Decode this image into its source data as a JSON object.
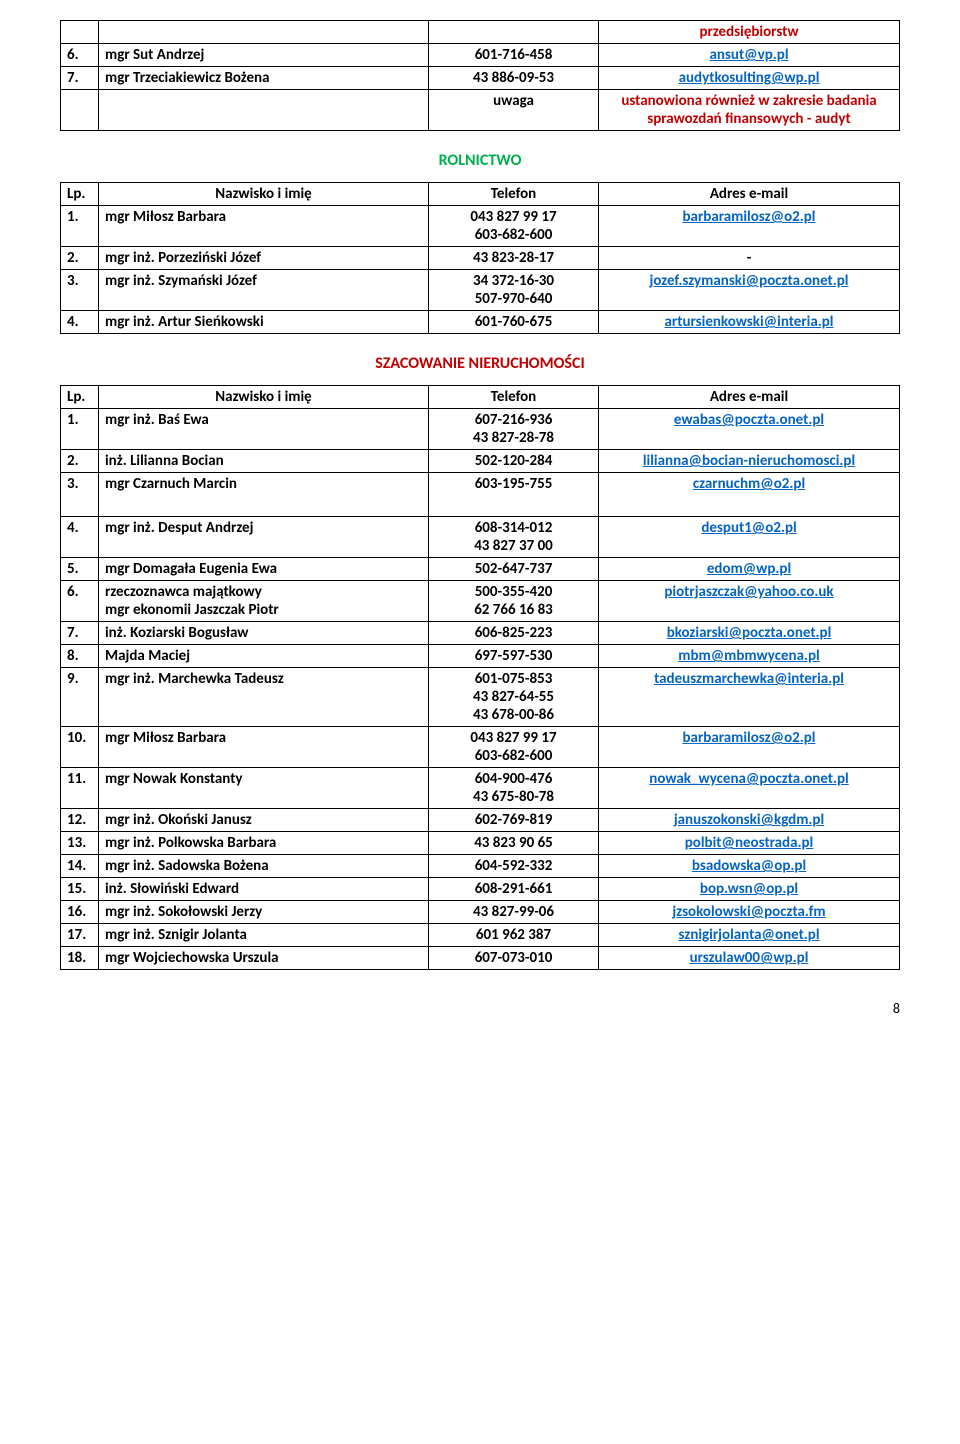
{
  "topTable": {
    "rows": [
      {
        "num": "",
        "name": "",
        "phone": "",
        "email": "przedsiębiorstw",
        "emailClass": "bold red"
      },
      {
        "num": "6.",
        "name": "mgr Sut Andrzej",
        "phone": "601-716-458",
        "email": "ansut@vp.pl",
        "emailClass": "blue"
      },
      {
        "num": "7.",
        "name": "mgr Trzeciakiewicz Bożena",
        "phone": "43 886-09-53",
        "email": "audytkosulting@wp.pl",
        "emailClass": "blue"
      },
      {
        "num": "",
        "name": "",
        "phoneHtml": "uwaga",
        "phoneClass": "center",
        "email": "ustanowiona również w zakresie badania sprawozdań finansowych - audyt",
        "emailClass": "bold red"
      }
    ]
  },
  "section1": {
    "title": "ROLNICTWO",
    "titleClass": "green",
    "header": {
      "lp": "Lp.",
      "name": "Nazwisko i imię",
      "phone": "Telefon",
      "email": "Adres e-mail"
    },
    "rows": [
      {
        "num": "1.",
        "name": "mgr Miłosz Barbara",
        "phone": "043 827 99 17\n603-682-600",
        "email": "barbaramilosz@o2.pl",
        "emailClass": "blue"
      },
      {
        "num": "2.",
        "name": "mgr inż. Porzeziński Józef",
        "phone": "43 823-28-17",
        "email": "-"
      },
      {
        "num": "3.",
        "name": "mgr inż. Szymański Józef",
        "phone": "34 372-16-30\n507-970-640",
        "email": "jozef.szymanski@poczta.onet.pl",
        "emailClass": "blue"
      },
      {
        "num": "4.",
        "name": "mgr inż. Artur Sieńkowski",
        "phone": "601-760-675",
        "email": "artursienkowski@interia.pl",
        "emailClass": "blue"
      }
    ]
  },
  "section2": {
    "title": "SZACOWANIE NIERUCHOMOŚCI",
    "titleClass": "red bold",
    "header": {
      "lp": "Lp.",
      "name": "Nazwisko i imię",
      "phone": "Telefon",
      "email": "Adres e-mail"
    },
    "rows": [
      {
        "num": "1.",
        "name": "mgr inż. Baś Ewa",
        "phone": "607-216-936\n43 827-28-78",
        "email": "ewabas@poczta.onet.pl",
        "emailClass": "blue"
      },
      {
        "num": "2.",
        "name": " inż. Lilianna Bocian",
        "phone": "502-120-284",
        "email": "lilianna@bocian-nieruchomosci.pl",
        "emailClass": "blue"
      },
      {
        "num": "3.",
        "name": "mgr Czarnuch Marcin",
        "phone": "603-195-755",
        "email": "czarnuchm@o2.pl",
        "emailClass": "blue",
        "tall": true
      },
      {
        "num": "4.",
        "name": "mgr inż. Desput Andrzej",
        "phone": "608-314-012\n43 827 37 00",
        "email": "desput1@o2.pl",
        "emailClass": "blue"
      },
      {
        "num": "5.",
        "name": "mgr Domagała Eugenia Ewa",
        "phone": "502-647-737",
        "email": "edom@wp.pl",
        "emailClass": "blue"
      },
      {
        "num": "6.",
        "name": "rzeczoznawca majątkowy\nmgr ekonomii Jaszczak Piotr",
        "phone": "500-355-420\n62 766 16 83",
        "email": "piotrjaszczak@yahoo.co.uk",
        "emailClass": "blue"
      },
      {
        "num": "7.",
        "name": " inż. Koziarski Bogusław",
        "phone": "606-825-223",
        "email": "bkoziarski@poczta.onet.pl",
        "emailClass": "blue"
      },
      {
        "num": "8.",
        "name": "Majda Maciej",
        "phone": "697-597-530",
        "email": "mbm@mbmwycena.pl",
        "emailClass": "blue"
      },
      {
        "num": "9.",
        "name": " mgr inż. Marchewka Tadeusz",
        "phone": "601-075-853\n43 827-64-55\n43 678-00-86",
        "email": "tadeuszmarchewka@interia.pl",
        "emailClass": "blue"
      },
      {
        "num": "10.",
        "name": "mgr Miłosz Barbara",
        "phone": "043 827 99 17\n603-682-600",
        "email": "barbaramilosz@o2.pl",
        "emailClass": "blue"
      },
      {
        "num": "11.",
        "name": "mgr Nowak Konstanty",
        "phone": "604-900-476\n43 675-80-78",
        "email": "nowak_wycena@poczta.onet.pl",
        "emailClass": "blue"
      },
      {
        "num": "12.",
        "name": "mgr inż. Okoński Janusz",
        "phone": "602-769-819",
        "email": "januszokonski@kgdm.pl",
        "emailClass": "blue"
      },
      {
        "num": "13.",
        "name": "mgr inż. Polkowska Barbara",
        "phone": "43 823 90 65",
        "email": "polbit@neostrada.pl",
        "emailClass": "blue"
      },
      {
        "num": "14.",
        "name": "mgr inż. Sadowska Bożena",
        "phone": "604-592-332",
        "email": "bsadowska@op.pl",
        "emailClass": "blue"
      },
      {
        "num": "15.",
        "name": "inż. Słowiński Edward",
        "phone": "608-291-661",
        "email": "bop.wsn@op.pl",
        "emailClass": "blue"
      },
      {
        "num": "16.",
        "name": "mgr inż. Sokołowski Jerzy",
        "phone": "43 827-99-06",
        "email": "jzsokolowski@poczta.fm",
        "emailClass": "blue"
      },
      {
        "num": "17.",
        "name": "mgr inż. Sznigir Jolanta",
        "phone": "601 962 387",
        "email": "sznigirjolanta@onet.pl",
        "emailClass": "blue"
      },
      {
        "num": "18.",
        "name": "mgr Wojciechowska Urszula",
        "phone": "607-073-010",
        "email": "urszulaw00@wp.pl",
        "emailClass": "blue"
      }
    ]
  },
  "pageNumber": "8"
}
